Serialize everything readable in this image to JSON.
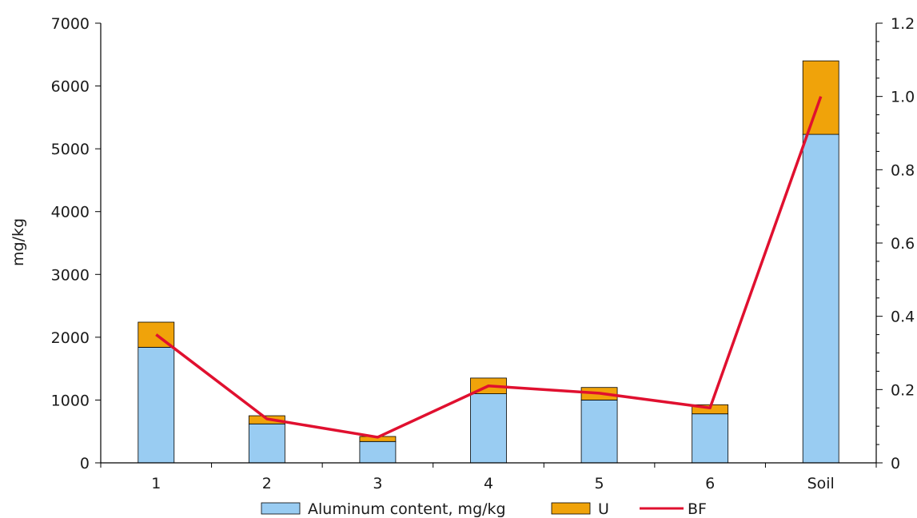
{
  "chart_data": {
    "type": "bar",
    "stacked": true,
    "categories": [
      "1",
      "2",
      "3",
      "4",
      "5",
      "6",
      "Soil"
    ],
    "series": [
      {
        "name": "Aluminum content, mg/kg",
        "type": "bar",
        "axis": "left",
        "color": "#99CCF2",
        "values": [
          1840,
          620,
          340,
          1100,
          1000,
          780,
          5230
        ]
      },
      {
        "name": "U",
        "type": "bar",
        "axis": "left",
        "color": "#F0A30A",
        "values": [
          400,
          130,
          80,
          250,
          200,
          145,
          1170
        ]
      },
      {
        "name": "BF",
        "type": "line",
        "axis": "right",
        "color": "#E0102F",
        "values": [
          0.35,
          0.12,
          0.07,
          0.21,
          0.19,
          0.15,
          1.0
        ]
      }
    ],
    "ylabel": "mg/kg",
    "ylim": [
      0,
      7000
    ],
    "yticks": [
      0,
      1000,
      2000,
      3000,
      4000,
      5000,
      6000,
      7000
    ],
    "y2lim": [
      0,
      1.2
    ],
    "y2ticks": [
      "0",
      "0.2",
      "0.4",
      "0.6",
      "0.8",
      "1.0",
      "1.2"
    ],
    "y2minor": 0.05,
    "grid": false,
    "legend_position": "bottom"
  }
}
